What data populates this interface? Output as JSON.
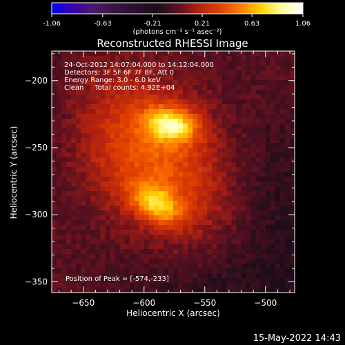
{
  "colors": {
    "background": "#000000",
    "text": "#ffffff",
    "colormap": [
      "#0000ff",
      "#3b00a8",
      "#4a1a6e",
      "#3a1540",
      "#2a1030",
      "#1a0d1a",
      "#5a1020",
      "#b02010",
      "#e04000",
      "#ff7a00",
      "#ffd000",
      "#ffffa0",
      "#ffffff"
    ]
  },
  "colorbar": {
    "ticks": [
      "-1.06",
      "-0.63",
      "-0.21",
      "0.21",
      "0.63",
      "1.06"
    ],
    "min": -1.06,
    "max": 1.06,
    "unit_label": "(photons cm⁻² s⁻¹ asec⁻²)"
  },
  "image": {
    "title": "Reconstructed RHESSI Image",
    "info_lines": [
      "24-Oct-2012 14:07:04.000 to 14:12:04.000",
      "Detectors: 3F 5F 6F 7F 8F, Att 0",
      "Energy Range: 3.0 - 6.0 keV",
      "Clean     Total counts: 4.92E+04"
    ],
    "peak_label": "Position of Peak = [-574,-233]"
  },
  "footer": {
    "timestamp": "15-May-2022 14:43"
  },
  "chart_data": {
    "type": "heatmap",
    "title": "Reconstructed RHESSI Image",
    "xlabel": "Heliocentric X (arcsec)",
    "ylabel": "Heliocentric Y (arcsec)",
    "xlim": [
      -676,
      -476
    ],
    "ylim": [
      -358,
      -178
    ],
    "xticks": [
      -650,
      -600,
      -550,
      -500
    ],
    "yticks": [
      -200,
      -250,
      -300,
      -350
    ],
    "colorbar_range": [
      -1.06,
      1.06
    ],
    "peak": {
      "x": -574,
      "y": -233
    },
    "sources": [
      {
        "name": "upper",
        "x": -577,
        "y": -233,
        "peak": 1.06
      },
      {
        "name": "lower",
        "x": -590,
        "y": -292,
        "peak": 0.98
      }
    ]
  }
}
